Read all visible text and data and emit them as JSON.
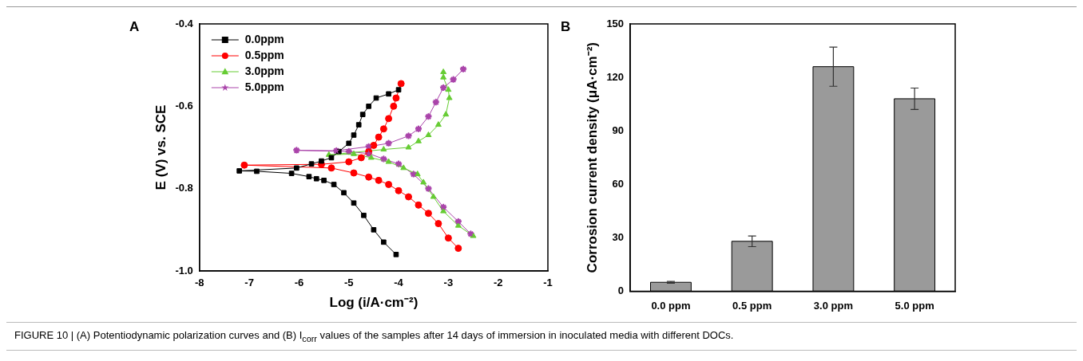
{
  "chart_data": [
    {
      "type": "line",
      "xlabel": "Log (i/A·cm⁻²)",
      "ylabel": "E (V) vs. SCE",
      "xlim": [
        -8,
        -1
      ],
      "xticks": [
        -8,
        -7,
        -6,
        -5,
        -4,
        -3,
        -2,
        -1
      ],
      "ylim": [
        -1.0,
        -0.4
      ],
      "yticks": [
        {
          "value": -1.0,
          "label": "-1.0"
        },
        -0.8,
        -0.6,
        -0.4
      ],
      "legend": "top left",
      "annotations": [
        "A"
      ],
      "series": [
        {
          "name": "0.0ppm",
          "color": "#000000",
          "marker": "square",
          "x": [
            -4.05,
            -4.3,
            -4.5,
            -4.7,
            -4.9,
            -5.1,
            -5.3,
            -5.5,
            -5.65,
            -5.8,
            -6.15,
            -6.85,
            -7.2,
            -6.05,
            -5.75,
            -5.55,
            -5.35,
            -5.2,
            -5.0,
            -4.9,
            -4.8,
            -4.72,
            -4.6,
            -4.45,
            -4.2,
            -4.0
          ],
          "values": [
            -0.96,
            -0.93,
            -0.9,
            -0.865,
            -0.835,
            -0.81,
            -0.79,
            -0.78,
            -0.776,
            -0.771,
            -0.763,
            -0.758,
            -0.757,
            -0.75,
            -0.74,
            -0.733,
            -0.725,
            -0.71,
            -0.69,
            -0.67,
            -0.645,
            -0.62,
            -0.6,
            -0.58,
            -0.57,
            -0.56
          ]
        },
        {
          "name": "0.5ppm",
          "color": "#ff0000",
          "marker": "circle",
          "x": [
            -2.8,
            -3.0,
            -3.2,
            -3.4,
            -3.6,
            -3.8,
            -4.0,
            -4.2,
            -4.4,
            -4.6,
            -4.9,
            -5.35,
            -7.1,
            -5.55,
            -5.0,
            -4.75,
            -4.6,
            -4.5,
            -4.4,
            -4.3,
            -4.2,
            -4.1,
            -4.05,
            -3.95
          ],
          "values": [
            -0.945,
            -0.92,
            -0.885,
            -0.86,
            -0.84,
            -0.82,
            -0.805,
            -0.79,
            -0.78,
            -0.772,
            -0.762,
            -0.75,
            -0.743,
            -0.741,
            -0.735,
            -0.725,
            -0.71,
            -0.695,
            -0.675,
            -0.655,
            -0.63,
            -0.6,
            -0.58,
            -0.545
          ]
        },
        {
          "name": "3.0ppm",
          "color": "#66cc33",
          "marker": "triangle",
          "x": [
            -2.5,
            -2.8,
            -3.1,
            -3.3,
            -3.5,
            -3.62,
            -3.9,
            -4.2,
            -4.55,
            -4.9,
            -5.4,
            -4.3,
            -3.8,
            -3.6,
            -3.4,
            -3.2,
            -3.05,
            -2.98,
            -3.0,
            -3.1,
            -3.1
          ],
          "values": [
            -0.915,
            -0.89,
            -0.855,
            -0.82,
            -0.785,
            -0.765,
            -0.75,
            -0.735,
            -0.725,
            -0.716,
            -0.718,
            -0.705,
            -0.7,
            -0.685,
            -0.67,
            -0.645,
            -0.62,
            -0.58,
            -0.56,
            -0.53,
            -0.517
          ]
        },
        {
          "name": "5.0ppm",
          "color": "#aa44aa",
          "marker": "star",
          "x": [
            -2.55,
            -2.8,
            -3.1,
            -3.4,
            -3.7,
            -4.0,
            -4.3,
            -4.6,
            -5.0,
            -6.05,
            -5.25,
            -4.6,
            -4.2,
            -3.8,
            -3.6,
            -3.4,
            -3.25,
            -3.1,
            -2.9,
            -2.7
          ],
          "values": [
            -0.91,
            -0.88,
            -0.845,
            -0.8,
            -0.765,
            -0.74,
            -0.728,
            -0.715,
            -0.71,
            -0.707,
            -0.708,
            -0.698,
            -0.69,
            -0.672,
            -0.655,
            -0.625,
            -0.59,
            -0.555,
            -0.535,
            -0.51
          ]
        }
      ]
    },
    {
      "type": "bar",
      "ylabel": "Corrosion current density (μA·cm⁻²)",
      "categories": [
        "0.0 ppm",
        "0.5 ppm",
        "3.0 ppm",
        "5.0 ppm"
      ],
      "values": [
        5,
        28,
        126,
        108
      ],
      "errors": [
        0.5,
        [
          25,
          31
        ],
        [
          115,
          137
        ],
        [
          102,
          114
        ]
      ],
      "color": "#9a9a9a",
      "ylim": [
        0,
        150
      ],
      "yticks": [
        0,
        30,
        60,
        90,
        120,
        150
      ],
      "annotations": [
        "B",
        "FIGURE 10 | (A) Potentiodynamic polarization curves and (B) I$_{corr}$ values of the samples after 14 days of immersion in inoculated media with different DOCs."
      ]
    }
  ]
}
